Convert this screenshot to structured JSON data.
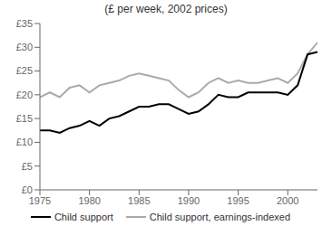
{
  "chart_data": {
    "type": "line",
    "title": "(£ per week, 2002 prices)",
    "x": [
      1975,
      1976,
      1977,
      1978,
      1979,
      1980,
      1981,
      1982,
      1983,
      1984,
      1985,
      1986,
      1987,
      1988,
      1989,
      1990,
      1991,
      1992,
      1993,
      1994,
      1995,
      1996,
      1997,
      1998,
      1999,
      2000,
      2001,
      2002,
      2003
    ],
    "series": [
      {
        "name": "Child support",
        "color": "#000000",
        "values": [
          12.5,
          12.5,
          12.0,
          13.0,
          13.5,
          14.5,
          13.5,
          15.0,
          15.5,
          16.5,
          17.5,
          17.5,
          18.0,
          18.0,
          17.0,
          16.0,
          16.5,
          18.0,
          20.0,
          19.5,
          19.5,
          20.5,
          20.5,
          20.5,
          20.5,
          20.0,
          22.0,
          28.5,
          29.0
        ]
      },
      {
        "name": "Child support, earnings-indexed",
        "color": "#aaaaaa",
        "values": [
          19.5,
          20.5,
          19.5,
          21.5,
          22.0,
          20.5,
          22.0,
          22.5,
          23.0,
          24.0,
          24.5,
          24.0,
          23.5,
          23.0,
          21.0,
          19.5,
          20.5,
          22.5,
          23.5,
          22.5,
          23.0,
          22.5,
          22.5,
          23.0,
          23.5,
          22.5,
          24.5,
          28.5,
          31.0
        ]
      }
    ],
    "xlim": [
      1975,
      2003
    ],
    "xticks": [
      1975,
      1980,
      1985,
      1990,
      1995,
      2000
    ],
    "ylim": [
      0,
      35
    ],
    "yticks": [
      {
        "value": 0,
        "label": "£0"
      },
      {
        "value": 5,
        "label": "£5"
      },
      {
        "value": 10,
        "label": "£10"
      },
      {
        "value": 15,
        "label": "£15"
      },
      {
        "value": 20,
        "label": "£20"
      },
      {
        "value": 25,
        "label": "£25"
      },
      {
        "value": 30,
        "label": "£30"
      },
      {
        "value": 35,
        "label": "£35"
      }
    ],
    "grid": false,
    "legend": "bottom"
  }
}
